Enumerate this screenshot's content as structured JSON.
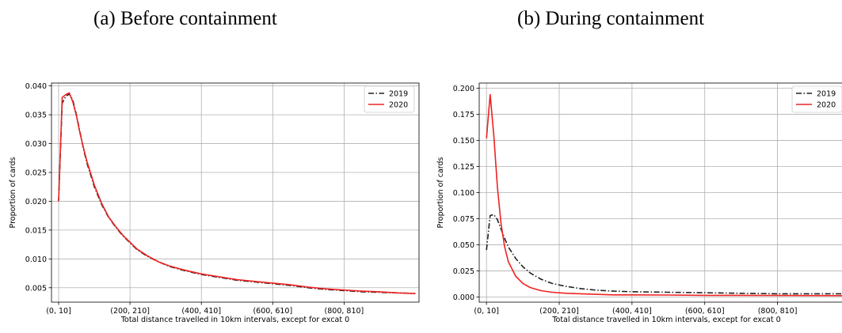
{
  "captions": {
    "a": "(a) Before containment",
    "b": "(b) During containment"
  },
  "chart_data": [
    {
      "type": "line",
      "title": "",
      "xlabel": "Total distance travelled in 10km intervals, except for excat 0",
      "ylabel": "Proportion of cards",
      "xlim": [
        -2,
        101
      ],
      "ylim": [
        0.0025,
        0.0405
      ],
      "x_tick_labels": [
        "(0, 10]",
        "(200, 210]",
        "(400, 410]",
        "(600, 610]",
        "(800, 810]"
      ],
      "y_ticks": [
        0.005,
        0.01,
        0.015,
        0.02,
        0.025,
        0.03,
        0.035,
        0.04
      ],
      "y_tick_labels": [
        "0.005",
        "0.010",
        "0.015",
        "0.020",
        "0.025",
        "0.030",
        "0.035",
        "0.040"
      ],
      "grid": true,
      "legend_position": "top-right",
      "series": [
        {
          "name": "2019",
          "style": "dashdot",
          "color": "#222222",
          "x": [
            0,
            1,
            2,
            3,
            4,
            5,
            6,
            7,
            8,
            9,
            10,
            12,
            14,
            16,
            18,
            20,
            22,
            25,
            28,
            31,
            35,
            40,
            45,
            50,
            55,
            60,
            65,
            70,
            75,
            80,
            85,
            90,
            95,
            100
          ],
          "y": [
            0.02,
            0.037,
            0.0382,
            0.0386,
            0.0375,
            0.035,
            0.032,
            0.029,
            0.0265,
            0.0245,
            0.0225,
            0.0195,
            0.0172,
            0.0155,
            0.014,
            0.0128,
            0.0116,
            0.0104,
            0.0095,
            0.0087,
            0.008,
            0.0073,
            0.0068,
            0.0063,
            0.006,
            0.0057,
            0.0054,
            0.005,
            0.0047,
            0.0045,
            0.0043,
            0.0042,
            0.0041,
            0.004
          ]
        },
        {
          "name": "2020",
          "style": "solid",
          "color": "#ee2222",
          "x": [
            0,
            1,
            2,
            3,
            4,
            5,
            6,
            7,
            8,
            9,
            10,
            12,
            14,
            16,
            18,
            20,
            22,
            25,
            28,
            31,
            35,
            40,
            45,
            50,
            55,
            60,
            65,
            70,
            75,
            80,
            85,
            90,
            95,
            100
          ],
          "y": [
            0.02,
            0.038,
            0.0385,
            0.0388,
            0.0372,
            0.0348,
            0.0318,
            0.0292,
            0.0268,
            0.0248,
            0.0228,
            0.0197,
            0.0173,
            0.0156,
            0.0141,
            0.0129,
            0.0117,
            0.0105,
            0.0095,
            0.0088,
            0.0081,
            0.0074,
            0.0069,
            0.0064,
            0.0061,
            0.0058,
            0.0055,
            0.0051,
            0.0048,
            0.0046,
            0.0044,
            0.0043,
            0.0041,
            0.004
          ]
        }
      ]
    },
    {
      "type": "line",
      "title": "",
      "xlabel": "Total distance travelled in 10km intervals, except for excat 0",
      "ylabel": "Proportion of cards",
      "xlim": [
        -2,
        101
      ],
      "ylim": [
        -0.005,
        0.205
      ],
      "x_tick_labels": [
        "(0, 10]",
        "(200, 210]",
        "(400, 410]",
        "(600, 610]",
        "(800, 810]"
      ],
      "y_ticks": [
        0.0,
        0.025,
        0.05,
        0.075,
        0.1,
        0.125,
        0.15,
        0.175,
        0.2
      ],
      "y_tick_labels": [
        "0.000",
        "0.025",
        "0.050",
        "0.075",
        "0.100",
        "0.125",
        "0.150",
        "0.175",
        "0.200"
      ],
      "grid": true,
      "legend_position": "top-right",
      "series": [
        {
          "name": "2019",
          "style": "dashdot",
          "color": "#222222",
          "x": [
            0,
            1,
            2,
            3,
            4,
            5,
            6,
            8,
            10,
            12,
            15,
            18,
            22,
            26,
            30,
            35,
            40,
            50,
            60,
            70,
            80,
            90,
            100
          ],
          "y": [
            0.045,
            0.078,
            0.079,
            0.074,
            0.065,
            0.056,
            0.048,
            0.037,
            0.029,
            0.023,
            0.017,
            0.013,
            0.01,
            0.008,
            0.0065,
            0.0055,
            0.005,
            0.0045,
            0.004,
            0.0035,
            0.003,
            0.003,
            0.003
          ]
        },
        {
          "name": "2020",
          "style": "solid",
          "color": "#ee2222",
          "x": [
            0,
            1,
            2,
            3,
            4,
            5,
            6,
            8,
            10,
            12,
            15,
            18,
            22,
            26,
            30,
            35,
            40,
            50,
            60,
            70,
            80,
            90,
            100
          ],
          "y": [
            0.152,
            0.194,
            0.155,
            0.105,
            0.07,
            0.048,
            0.034,
            0.02,
            0.013,
            0.009,
            0.006,
            0.0045,
            0.0035,
            0.003,
            0.0025,
            0.002,
            0.002,
            0.0018,
            0.0015,
            0.0015,
            0.0014,
            0.0013,
            0.0012
          ]
        }
      ]
    }
  ]
}
